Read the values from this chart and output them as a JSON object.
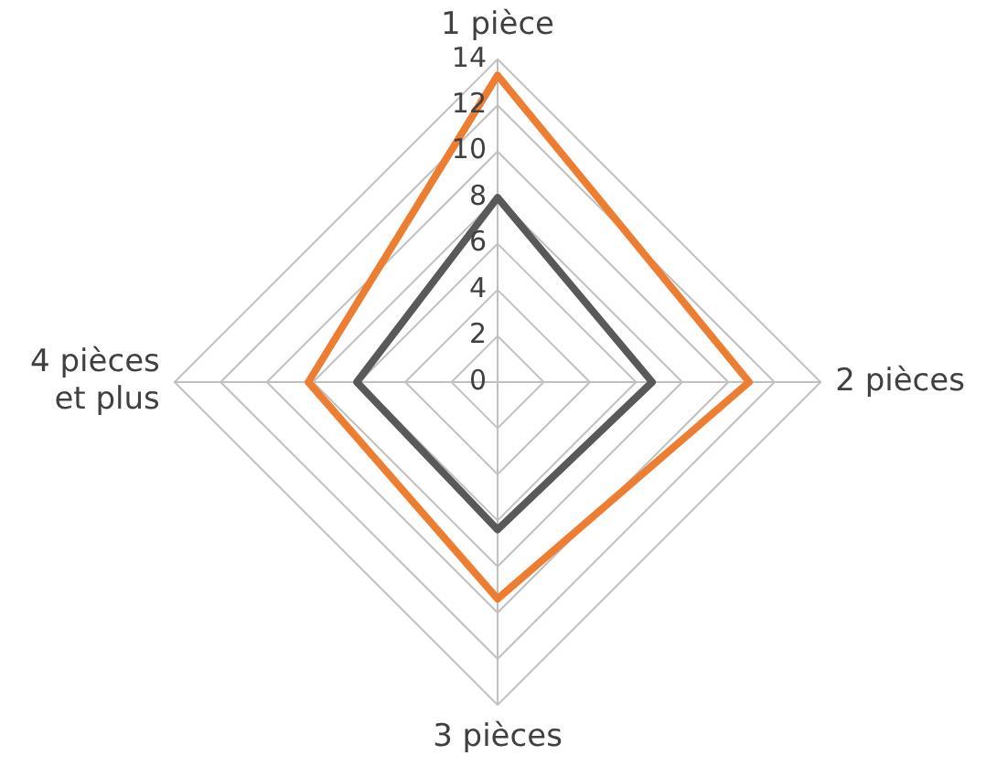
{
  "chart_data": {
    "type": "radar",
    "categories": [
      "1 pièce",
      "2 pièces",
      "3 pièces",
      "4 pièces et plus"
    ],
    "series": [
      {
        "color": "#ed7d31",
        "values": [
          13.3,
          10.9,
          9.4,
          8.2
        ]
      },
      {
        "color": "#595959",
        "values": [
          8,
          6.7,
          6.4,
          6.1
        ]
      }
    ],
    "ylim": [
      0,
      14
    ],
    "yticks": [
      0,
      2,
      4,
      6,
      8,
      10,
      12,
      14
    ],
    "grid": true,
    "legend": false,
    "marker": "none"
  }
}
